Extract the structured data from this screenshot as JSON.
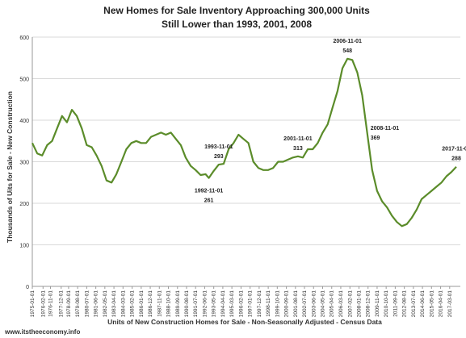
{
  "chart_data": {
    "type": "line",
    "title": "New Homes for Sale Inventory Approaching 300,000 Units",
    "subtitle": "Still Lower than 1993, 2001, 2008",
    "ylabel": "Thousands of Uits for Sale - New Construction",
    "xlabel": "Units of New Construction Homes for Sale - Non-Seasonally Adjusted - Census Data",
    "watermark": "www.itstheeconomy.info",
    "ylim": [
      0,
      600
    ],
    "yticks": [
      0,
      100,
      200,
      300,
      400,
      500,
      600
    ],
    "grid": true,
    "line_color": "#5b8c2a",
    "xticks": [
      "1975-01-01",
      "1976-02-01",
      "1976-11-01",
      "1977-12-01",
      "1978-09-01",
      "1979-08-01",
      "1980-07-01",
      "1981-06-01",
      "1982-05-01",
      "1983-04-01",
      "1984-03-01",
      "1985-02-01",
      "1986-01-01",
      "1986-12-01",
      "1987-11-01",
      "1988-10-01",
      "1989-09-01",
      "1990-08-01",
      "1991-07-01",
      "1992-06-01",
      "1993-05-01",
      "1994-04-01",
      "1995-03-01",
      "1996-02-01",
      "1997-01-01",
      "1997-12-01",
      "1998-11-01",
      "1999-10-01",
      "2000-09-01",
      "2001-08-01",
      "2002-07-01",
      "2003-06-01",
      "2004-05-01",
      "2005-04-01",
      "2006-03-01",
      "2007-02-01",
      "2008-01-01",
      "2008-12-01",
      "2009-11-01",
      "2010-10-01",
      "2011-09-01",
      "2012-08-01",
      "2013-07-01",
      "2014-06-01",
      "2015-05-01",
      "2016-04-01",
      "2017-03-01"
    ],
    "annotations": [
      {
        "date": "1992-11-01",
        "label": "1992-11-01",
        "value_label": "261",
        "value": 261,
        "pos": "below"
      },
      {
        "date": "1993-11-01",
        "label": "1993-11-01",
        "value_label": "293",
        "value": 293,
        "pos": "above"
      },
      {
        "date": "2001-11-01",
        "label": "2001-11-01",
        "value_label": "313",
        "value": 313,
        "pos": "above"
      },
      {
        "date": "2006-11-01",
        "label": "2006-11-01",
        "value_label": "548",
        "value": 548,
        "pos": "above"
      },
      {
        "date": "2008-11-01",
        "label": "2008-11-01",
        "value_label": "369",
        "value": 369,
        "pos": "right"
      },
      {
        "date": "2017-11-01",
        "label": "2017-11-01",
        "value_label": "288",
        "value": 288,
        "pos": "above"
      }
    ],
    "series": [
      {
        "x": [
          "1975-01-01",
          "1975-07-01",
          "1976-01-01",
          "1976-07-01",
          "1977-01-01",
          "1977-07-01",
          "1978-01-01",
          "1978-07-01",
          "1979-01-01",
          "1979-07-01",
          "1980-01-01",
          "1980-07-01",
          "1981-01-01",
          "1981-07-01",
          "1982-01-01",
          "1982-07-01",
          "1983-01-01",
          "1983-07-01",
          "1984-01-01",
          "1984-07-01",
          "1985-01-01",
          "1985-07-01",
          "1986-01-01",
          "1986-07-01",
          "1987-01-01",
          "1987-07-01",
          "1988-01-01",
          "1988-07-01",
          "1989-01-01",
          "1989-07-01",
          "1990-01-01",
          "1990-07-01",
          "1991-01-01",
          "1991-07-01",
          "1992-01-01",
          "1992-07-01",
          "1992-11-01",
          "1993-05-01",
          "1993-11-01",
          "1994-05-01",
          "1994-11-01",
          "1995-05-01",
          "1995-11-01",
          "1996-05-01",
          "1996-11-01",
          "1997-05-01",
          "1997-11-01",
          "1998-05-01",
          "1998-11-01",
          "1999-05-01",
          "1999-11-01",
          "2000-05-01",
          "2000-11-01",
          "2001-05-01",
          "2001-11-01",
          "2002-05-01",
          "2002-11-01",
          "2003-05-01",
          "2003-11-01",
          "2004-05-01",
          "2004-11-01",
          "2005-05-01",
          "2005-11-01",
          "2006-05-01",
          "2006-11-01",
          "2007-05-01",
          "2007-11-01",
          "2008-05-01",
          "2008-11-01",
          "2009-05-01",
          "2009-11-01",
          "2010-05-01",
          "2010-11-01",
          "2011-05-01",
          "2011-11-01",
          "2012-05-01",
          "2012-11-01",
          "2013-05-01",
          "2013-11-01",
          "2014-05-01",
          "2014-11-01",
          "2015-05-01",
          "2015-11-01",
          "2016-05-01",
          "2016-11-01",
          "2017-05-01",
          "2017-11-01"
        ],
        "values": [
          345,
          320,
          315,
          340,
          350,
          380,
          410,
          395,
          425,
          410,
          380,
          340,
          335,
          315,
          290,
          255,
          250,
          270,
          300,
          330,
          345,
          350,
          345,
          345,
          360,
          365,
          370,
          365,
          370,
          355,
          340,
          310,
          290,
          280,
          268,
          270,
          261,
          278,
          293,
          295,
          330,
          345,
          365,
          355,
          345,
          300,
          285,
          280,
          280,
          285,
          300,
          300,
          305,
          310,
          313,
          310,
          330,
          330,
          345,
          370,
          390,
          430,
          470,
          525,
          548,
          545,
          515,
          460,
          369,
          280,
          230,
          205,
          190,
          170,
          155,
          145,
          150,
          165,
          185,
          210,
          220,
          230,
          240,
          250,
          265,
          275,
          288
        ]
      }
    ]
  }
}
